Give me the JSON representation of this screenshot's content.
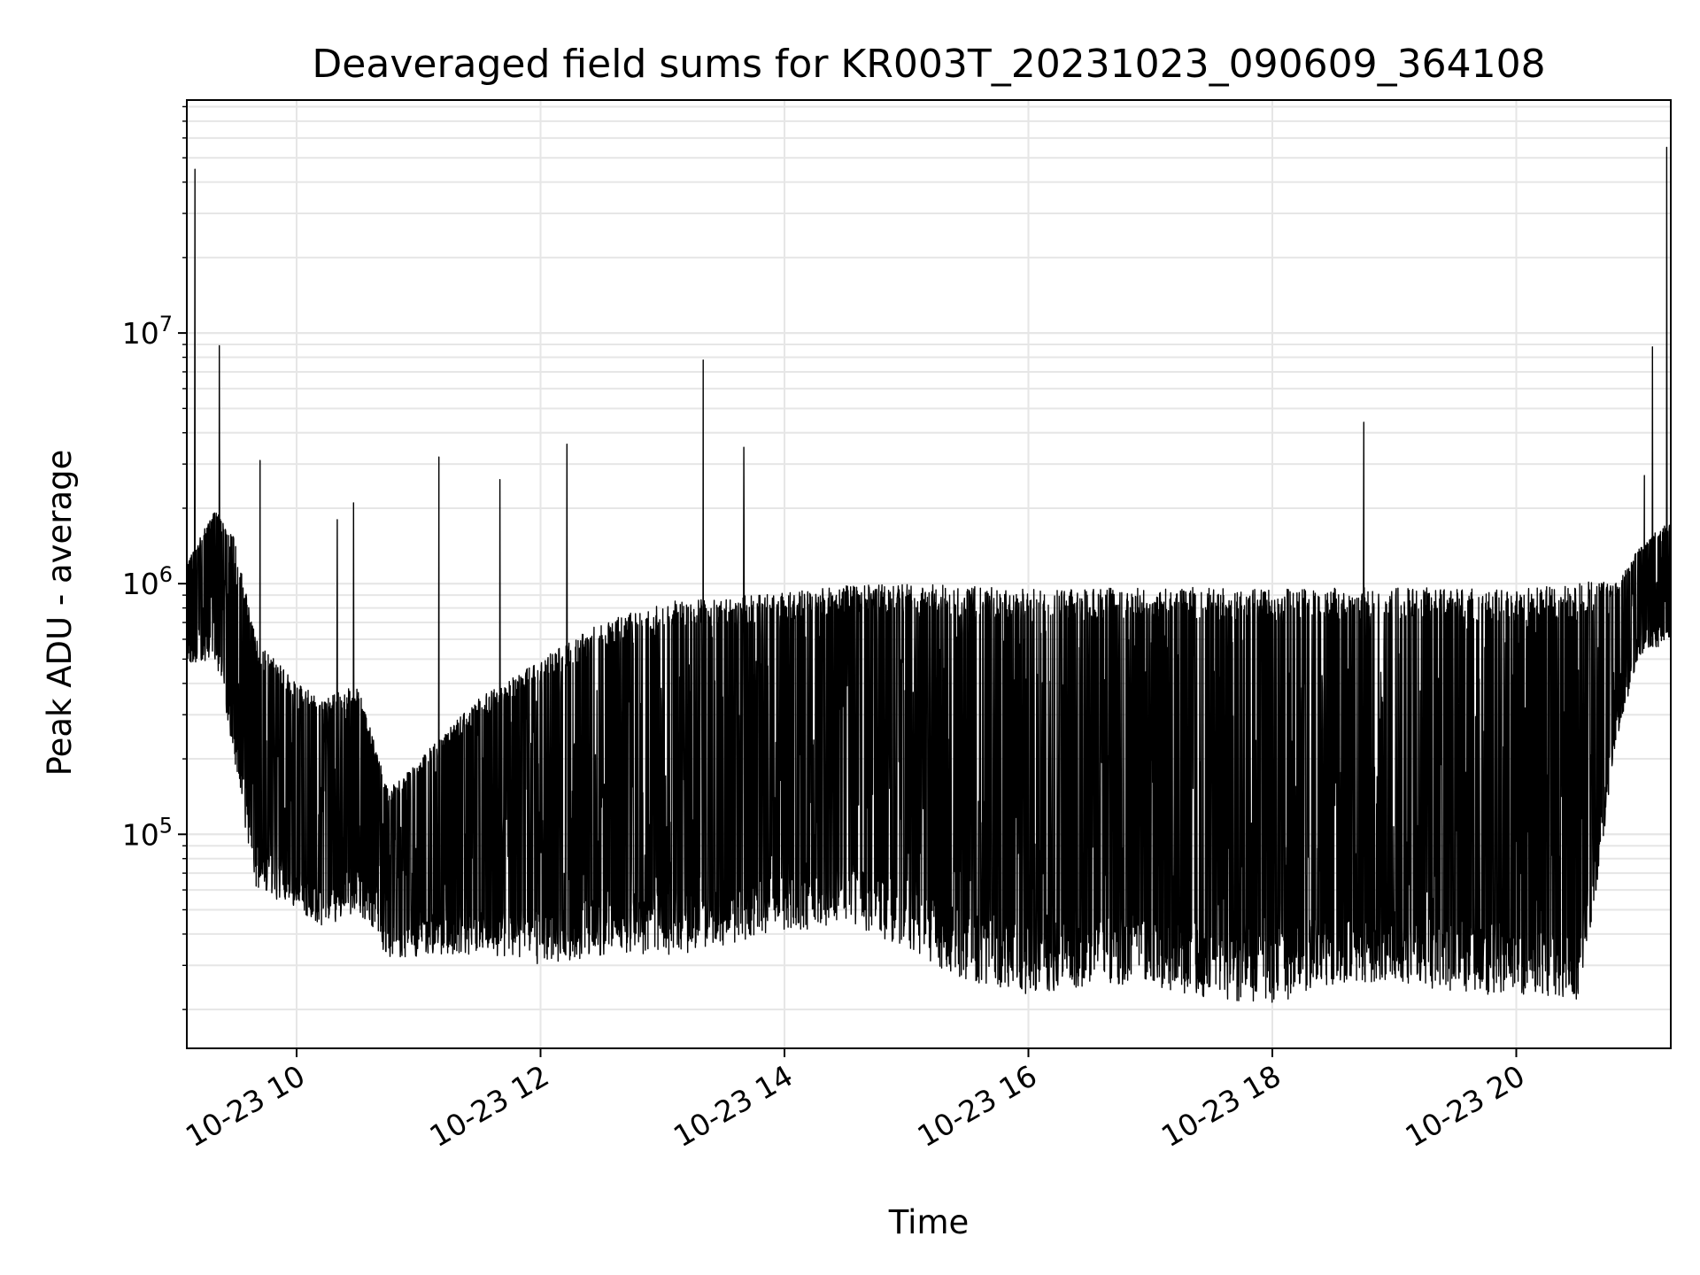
{
  "chart_data": {
    "type": "line",
    "title": "Deaveraged field sums for KR003T_20231023_090609_364108",
    "xlabel": "Time",
    "ylabel": "Peak ADU - average",
    "yscale": "log",
    "ylim": [
      14000,
      85000000
    ],
    "xlim": [
      "2023-10-23 09:06",
      "2023-10-23 21:16"
    ],
    "grid": true,
    "line_color": "#000000",
    "grid_color": "#e6e6e6",
    "x_ticks": [
      {
        "label": "10-23 10",
        "time": "2023-10-23 10:00"
      },
      {
        "label": "10-23 12",
        "time": "2023-10-23 12:00"
      },
      {
        "label": "10-23 14",
        "time": "2023-10-23 14:00"
      },
      {
        "label": "10-23 16",
        "time": "2023-10-23 16:00"
      },
      {
        "label": "10-23 18",
        "time": "2023-10-23 18:00"
      },
      {
        "label": "10-23 20",
        "time": "2023-10-23 20:00"
      }
    ],
    "y_ticks": [
      {
        "base": "10",
        "exp": "5",
        "value": 100000
      },
      {
        "base": "10",
        "exp": "6",
        "value": 1000000
      },
      {
        "base": "10",
        "exp": "7",
        "value": 10000000
      }
    ],
    "series": [
      {
        "envelope": [
          {
            "time": "2023-10-23 09:06",
            "low": 480000,
            "high": 1200000
          },
          {
            "time": "2023-10-23 09:20",
            "low": 500000,
            "high": 2000000
          },
          {
            "time": "2023-10-23 09:30",
            "low": 180000,
            "high": 1500000
          },
          {
            "time": "2023-10-23 09:40",
            "low": 60000,
            "high": 600000
          },
          {
            "time": "2023-10-23 10:00",
            "low": 50000,
            "high": 400000
          },
          {
            "time": "2023-10-23 10:15",
            "low": 42000,
            "high": 350000
          },
          {
            "time": "2023-10-23 10:30",
            "low": 50000,
            "high": 400000
          },
          {
            "time": "2023-10-23 10:45",
            "low": 32000,
            "high": 150000
          },
          {
            "time": "2023-10-23 11:00",
            "low": 32000,
            "high": 200000
          },
          {
            "time": "2023-10-23 11:30",
            "low": 33000,
            "high": 350000
          },
          {
            "time": "2023-10-23 12:00",
            "low": 30000,
            "high": 500000
          },
          {
            "time": "2023-10-23 12:30",
            "low": 33000,
            "high": 700000
          },
          {
            "time": "2023-10-23 13:00",
            "low": 33000,
            "high": 850000
          },
          {
            "time": "2023-10-23 13:30",
            "low": 34000,
            "high": 880000
          },
          {
            "time": "2023-10-23 14:00",
            "low": 40000,
            "high": 920000
          },
          {
            "time": "2023-10-23 14:30",
            "low": 45000,
            "high": 980000
          },
          {
            "time": "2023-10-23 15:00",
            "low": 35000,
            "high": 1000000
          },
          {
            "time": "2023-10-23 15:30",
            "low": 25000,
            "high": 980000
          },
          {
            "time": "2023-10-23 16:00",
            "low": 23000,
            "high": 950000
          },
          {
            "time": "2023-10-23 16:30",
            "low": 25000,
            "high": 950000
          },
          {
            "time": "2023-10-23 17:00",
            "low": 25000,
            "high": 980000
          },
          {
            "time": "2023-10-23 17:30",
            "low": 22000,
            "high": 960000
          },
          {
            "time": "2023-10-23 18:00",
            "low": 21000,
            "high": 950000
          },
          {
            "time": "2023-10-23 18:30",
            "low": 25000,
            "high": 960000
          },
          {
            "time": "2023-10-23 19:00",
            "low": 26000,
            "high": 970000
          },
          {
            "time": "2023-10-23 19:30",
            "low": 23000,
            "high": 960000
          },
          {
            "time": "2023-10-23 20:00",
            "low": 23000,
            "high": 950000
          },
          {
            "time": "2023-10-23 20:30",
            "low": 22000,
            "high": 1000000
          },
          {
            "time": "2023-10-23 20:40",
            "low": 60000,
            "high": 1050000
          },
          {
            "time": "2023-10-23 20:50",
            "low": 250000,
            "high": 1000000
          },
          {
            "time": "2023-10-23 21:00",
            "low": 500000,
            "high": 1400000
          },
          {
            "time": "2023-10-23 21:16",
            "low": 600000,
            "high": 1800000
          }
        ],
        "spikes": [
          {
            "time": "2023-10-23 09:10",
            "value": 45000000
          },
          {
            "time": "2023-10-23 09:22",
            "value": 8900000
          },
          {
            "time": "2023-10-23 09:42",
            "value": 3100000
          },
          {
            "time": "2023-10-23 10:20",
            "value": 1800000
          },
          {
            "time": "2023-10-23 10:28",
            "value": 2100000
          },
          {
            "time": "2023-10-23 11:10",
            "value": 3200000
          },
          {
            "time": "2023-10-23 11:40",
            "value": 2600000
          },
          {
            "time": "2023-10-23 12:13",
            "value": 3600000
          },
          {
            "time": "2023-10-23 13:20",
            "value": 7800000
          },
          {
            "time": "2023-10-23 13:40",
            "value": 3500000
          },
          {
            "time": "2023-10-23 18:45",
            "value": 4400000
          },
          {
            "time": "2023-10-23 21:03",
            "value": 2700000
          },
          {
            "time": "2023-10-23 21:07",
            "value": 8800000
          },
          {
            "time": "2023-10-23 21:14",
            "value": 55000000
          }
        ]
      }
    ]
  }
}
